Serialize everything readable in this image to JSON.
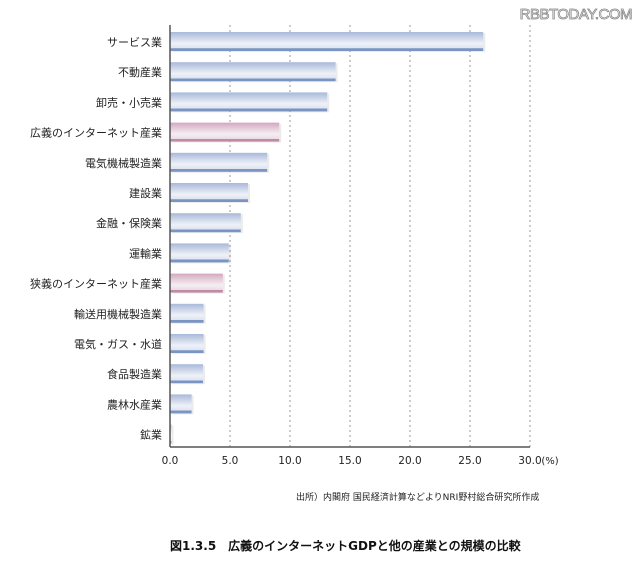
{
  "watermark": "RBBTODAY.COM",
  "source_note": "出所）内閣府 国民経済計算などよりNRI野村総合研究所作成",
  "caption": "図1.3.5　広義のインターネットGDPと他の産業との規模の比較",
  "colors": {
    "normal": "#8fa5cc",
    "highlight": "#c99ab2",
    "grid": "#999999",
    "axis": "#555555"
  },
  "chart_data": {
    "type": "bar",
    "orientation": "horizontal",
    "categories": [
      "サービス業",
      "不動産業",
      "卸売・小売業",
      "広義のインターネット産業",
      "電気機械製造業",
      "建設業",
      "金融・保険業",
      "運輸業",
      "狭義のインターネット産業",
      "輸送用機械製造業",
      "電気・ガス・水道",
      "食品製造業",
      "農林水産業",
      "鉱業"
    ],
    "values": [
      26.1,
      13.8,
      13.1,
      9.1,
      8.1,
      6.5,
      5.9,
      4.9,
      4.4,
      2.8,
      2.8,
      2.75,
      1.8,
      0.1
    ],
    "highlighted": [
      "広義のインターネット産業",
      "狭義のインターネット産業"
    ],
    "xlim": [
      0,
      30
    ],
    "xticks": [
      "0.0",
      "5.0",
      "10.0",
      "15.0",
      "20.0",
      "25.0",
      "30.0"
    ],
    "xunit": "(%)",
    "grid": "vertical dashed"
  }
}
